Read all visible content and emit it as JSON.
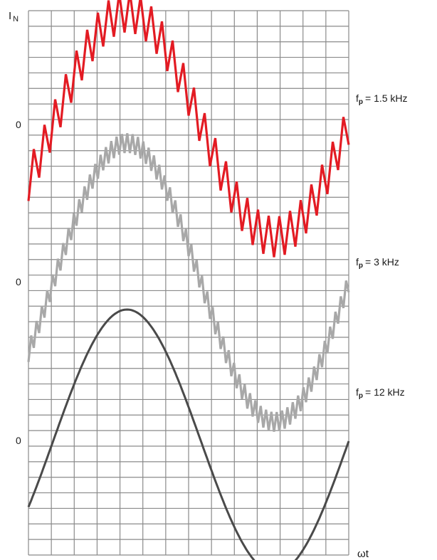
{
  "chart_data": {
    "type": "line",
    "ylabel_main": "I",
    "ylabel_sub": "N",
    "xlabel": "ωt",
    "zero_label": "0",
    "grid": true,
    "x_range_degrees": [
      -30,
      360
    ],
    "series": [
      {
        "fp_main": "f",
        "fp_sub": "p",
        "fp_value": "= 1.5 kHz",
        "color": "#e31b23",
        "ripple_teeth": 30,
        "ripple_amplitude": 0.18,
        "baseline_offset": 0.0
      },
      {
        "fp_main": "f",
        "fp_sub": "p",
        "fp_value": "= 3 kHz",
        "color": "#a8a8a8",
        "ripple_teeth": 60,
        "ripple_amplitude": 0.07,
        "baseline_offset": 0.0
      },
      {
        "fp_main": "f",
        "fp_sub": "p",
        "fp_value": "= 12 kHz",
        "color": "#4a4a4a",
        "ripple_teeth": 0,
        "ripple_amplitude": 0.0,
        "baseline_offset": 0.0
      }
    ]
  }
}
